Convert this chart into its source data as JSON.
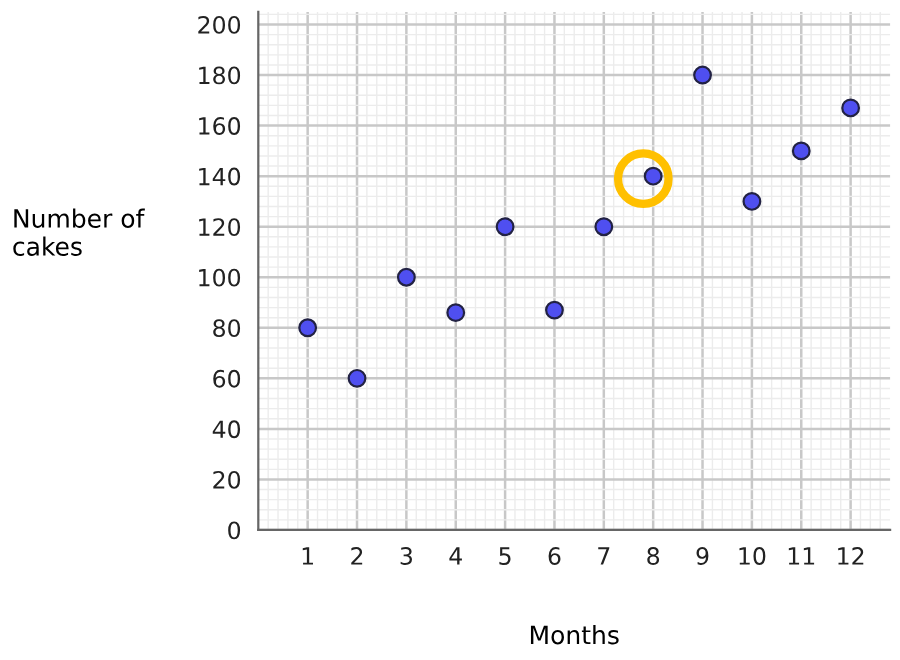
{
  "chart_data": {
    "type": "scatter",
    "xlabel": "Months",
    "ylabel": "Number of\ncakes",
    "x": [
      1,
      2,
      3,
      4,
      5,
      6,
      7,
      8,
      9,
      10,
      11,
      12
    ],
    "series": [
      {
        "color": "#4f4ff0",
        "values": [
          80,
          60,
          100,
          86,
          120,
          87,
          120,
          140,
          180,
          130,
          150,
          167
        ]
      },
      {
        "color": "#ffc000",
        "x": [
          7.8
        ],
        "values": [
          139
        ]
      }
    ],
    "xlim": [
      0,
      12.8
    ],
    "ylim": [
      0,
      205
    ],
    "xticks": [
      1,
      2,
      3,
      4,
      5,
      6,
      7,
      8,
      9,
      10,
      11,
      12
    ],
    "yticks": [
      0,
      20,
      40,
      60,
      80,
      100,
      120,
      140,
      160,
      180,
      200
    ],
    "grid": true,
    "marker": "circle",
    "legend": false
  }
}
